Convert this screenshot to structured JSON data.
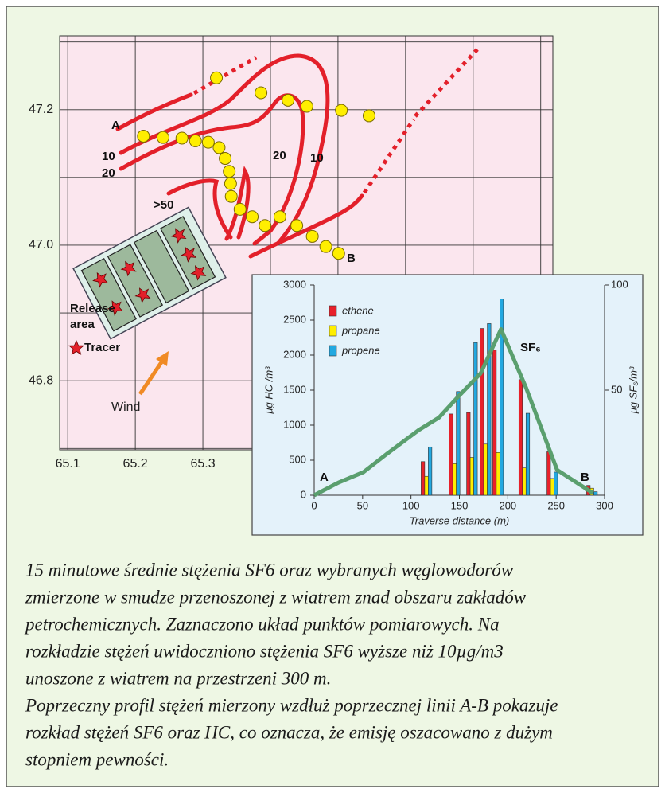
{
  "chart_data": [
    {
      "type": "scatter",
      "x": [
        65.32,
        65.386,
        65.426,
        65.454,
        65.505,
        65.546,
        65.212,
        65.241,
        65.269,
        65.289,
        65.308,
        65.324,
        65.333,
        65.339,
        65.341,
        65.342,
        65.355,
        65.373,
        65.392,
        65.414,
        65.439,
        65.462,
        65.482,
        65.501
      ],
      "y": [
        47.247,
        47.225,
        47.214,
        47.205,
        47.199,
        47.191,
        47.161,
        47.159,
        47.158,
        47.154,
        47.152,
        47.144,
        47.128,
        47.109,
        47.091,
        47.072,
        47.053,
        47.042,
        47.029,
        47.042,
        47.029,
        47.013,
        46.998,
        46.988
      ],
      "color": "#ffee00",
      "background": "#fbe6ee",
      "xlim": [
        65.088,
        65.818
      ],
      "ylim": [
        46.698,
        47.309
      ],
      "xticks": [
        65.1,
        65.2,
        65.3
      ],
      "yticks": [
        46.8,
        {
          "value": 47,
          "label": "47.0"
        },
        47.2
      ],
      "xgrid": [
        65.4,
        65.5,
        65.6,
        65.7,
        65.8
      ],
      "ygrid": [
        46.7,
        46.9,
        47.1,
        47.3
      ],
      "grid": true,
      "annotations": [
        "A",
        "10",
        "20",
        ">50",
        "20",
        "10",
        "B",
        "Release",
        "area",
        "Tracer",
        "Wind"
      ]
    },
    {
      "type": "bar",
      "x": [
        116,
        145,
        163,
        177,
        190,
        217,
        246,
        287
      ],
      "series": [
        {
          "name": "ethene",
          "color": "#e8202a",
          "values": [
            480,
            1160,
            1180,
            2380,
            2070,
            1650,
            620,
            140
          ]
        },
        {
          "name": "propane",
          "color": "#ffee00",
          "values": [
            270,
            450,
            540,
            730,
            610,
            390,
            240,
            100
          ]
        },
        {
          "name": "propene",
          "color": "#22a8e0",
          "values": [
            690,
            1480,
            2180,
            2450,
            2800,
            1170,
            330,
            50
          ]
        }
      ],
      "line": {
        "name": "SF₆",
        "color": "#5a9f6e",
        "axis": "y2",
        "x": [
          0,
          25,
          51,
          76,
          108,
          129,
          149,
          172,
          193,
          219,
          251,
          288
        ],
        "values": [
          0,
          6,
          11,
          20,
          31,
          37,
          47,
          58,
          79,
          51,
          12,
          1
        ]
      },
      "xlim": [
        0,
        300
      ],
      "ylim": [
        0,
        3000
      ],
      "y2lim": [
        0,
        100
      ],
      "xticks": [
        0,
        50,
        100,
        150,
        200,
        250,
        300
      ],
      "yticks": [
        0,
        500,
        1000,
        1500,
        2000,
        2500,
        3000
      ],
      "y2ticks": [
        50,
        100
      ],
      "background": "#e4f2fa",
      "xlabel": "Traverse distance (m)",
      "ylabel": "μg HC /m³",
      "y2label": "μg SF₆/m³",
      "annotations": [
        "A",
        "B"
      ]
    }
  ],
  "caption": {
    "lines": [
      "15 minutowe średnie stężenia SF6 oraz wybranych węglowodorów",
      "zmierzone w smudze przenoszonej z wiatrem znad obszaru zakładów",
      "petrochemicznych. Zaznaczono układ punktów pomiarowych. Na",
      "rozkładzie stężeń uwidoczniono stężenia SF6 wyższe niż 10µg/m3",
      "unoszone z wiatrem na przestrzeni 300 m.",
      "Poprzeczny profil stężeń mierzony wzdłuż poprzecznej linii A-B pokazuje",
      "rozkład stężeń SF6 oraz HC, co oznacza, że emisję oszacowano z dużym",
      "stopniem pewności."
    ]
  }
}
